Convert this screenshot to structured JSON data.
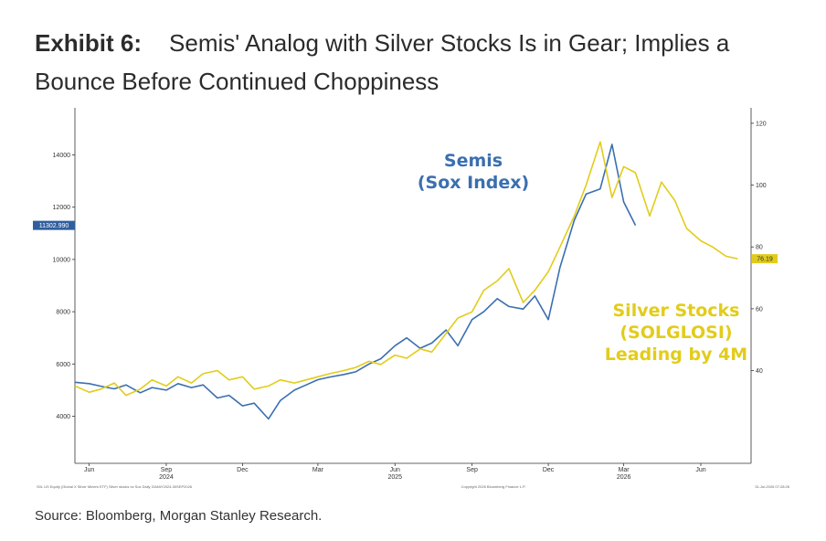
{
  "header": {
    "exhibit": "Exhibit 6:",
    "title": "Semis' Analog with Silver Stocks Is in Gear; Implies a Bounce Before Continued Choppiness"
  },
  "source": "Source: Bloomberg, Morgan Stanley Research.",
  "chart_data": {
    "type": "line",
    "x_axis": {
      "type": "date",
      "range": [
        "2024-05-15",
        "2026-07-31"
      ],
      "tick_labels": [
        {
          "label": "Jun",
          "year": "",
          "date": "2024-06-01"
        },
        {
          "label": "Sep",
          "year": "2024",
          "date": "2024-09-01"
        },
        {
          "label": "Dec",
          "year": "",
          "date": "2024-12-01"
        },
        {
          "label": "Mar",
          "year": "",
          "date": "2025-03-01"
        },
        {
          "label": "Jun",
          "year": "2025",
          "date": "2025-06-01"
        },
        {
          "label": "Sep",
          "year": "",
          "date": "2025-09-01"
        },
        {
          "label": "Dec",
          "year": "",
          "date": "2025-12-01"
        },
        {
          "label": "Mar",
          "year": "2026",
          "date": "2026-03-01"
        },
        {
          "label": "Jun",
          "year": "",
          "date": "2026-06-01"
        }
      ]
    },
    "y_left": {
      "range": [
        2200,
        15800
      ],
      "ticks": [
        4000,
        6000,
        8000,
        10000,
        12000,
        14000
      ],
      "last_value_label": "11302.990"
    },
    "y_right": {
      "range": [
        10,
        125
      ],
      "ticks": [
        40,
        60,
        80,
        100,
        120
      ],
      "last_value_label": "76.19"
    },
    "series": [
      {
        "name": "Semis (Sox Index)",
        "axis": "left",
        "color": "#3a6fb0",
        "points": [
          [
            "2024-05-15",
            5300
          ],
          [
            "2024-06-01",
            5250
          ],
          [
            "2024-06-15",
            5150
          ],
          [
            "2024-07-01",
            5050
          ],
          [
            "2024-07-15",
            5200
          ],
          [
            "2024-08-01",
            4900
          ],
          [
            "2024-08-15",
            5100
          ],
          [
            "2024-09-01",
            5000
          ],
          [
            "2024-09-15",
            5250
          ],
          [
            "2024-10-01",
            5100
          ],
          [
            "2024-10-15",
            5200
          ],
          [
            "2024-11-01",
            4700
          ],
          [
            "2024-11-15",
            4800
          ],
          [
            "2024-12-01",
            4400
          ],
          [
            "2024-12-15",
            4500
          ],
          [
            "2025-01-01",
            3900
          ],
          [
            "2025-01-15",
            4600
          ],
          [
            "2025-02-01",
            5000
          ],
          [
            "2025-02-15",
            5200
          ],
          [
            "2025-03-01",
            5400
          ],
          [
            "2025-03-15",
            5500
          ],
          [
            "2025-04-01",
            5600
          ],
          [
            "2025-04-15",
            5700
          ],
          [
            "2025-05-01",
            6000
          ],
          [
            "2025-05-15",
            6200
          ],
          [
            "2025-06-01",
            6700
          ],
          [
            "2025-06-15",
            7000
          ],
          [
            "2025-07-01",
            6600
          ],
          [
            "2025-07-15",
            6800
          ],
          [
            "2025-08-01",
            7300
          ],
          [
            "2025-08-15",
            6700
          ],
          [
            "2025-09-01",
            7700
          ],
          [
            "2025-09-15",
            8000
          ],
          [
            "2025-10-01",
            8500
          ],
          [
            "2025-10-15",
            8200
          ],
          [
            "2025-11-01",
            8100
          ],
          [
            "2025-11-15",
            8600
          ],
          [
            "2025-12-01",
            7700
          ],
          [
            "2025-12-15",
            9700
          ],
          [
            "2026-01-01",
            11500
          ],
          [
            "2026-01-15",
            12500
          ],
          [
            "2026-02-01",
            12700
          ],
          [
            "2026-02-15",
            14400
          ],
          [
            "2026-03-01",
            12200
          ],
          [
            "2026-03-15",
            11302.99
          ]
        ]
      },
      {
        "name": "Silver Stocks (SOLGLOSI) Leading by 4M",
        "axis": "right",
        "color": "#e2cc1a",
        "points": [
          [
            "2024-05-15",
            35
          ],
          [
            "2024-06-01",
            33
          ],
          [
            "2024-06-15",
            34
          ],
          [
            "2024-07-01",
            36
          ],
          [
            "2024-07-15",
            32
          ],
          [
            "2024-08-01",
            34
          ],
          [
            "2024-08-15",
            37
          ],
          [
            "2024-09-01",
            35
          ],
          [
            "2024-09-15",
            38
          ],
          [
            "2024-10-01",
            36
          ],
          [
            "2024-10-15",
            39
          ],
          [
            "2024-11-01",
            40
          ],
          [
            "2024-11-15",
            37
          ],
          [
            "2024-12-01",
            38
          ],
          [
            "2024-12-15",
            34
          ],
          [
            "2025-01-01",
            35
          ],
          [
            "2025-01-15",
            37
          ],
          [
            "2025-02-01",
            36
          ],
          [
            "2025-02-15",
            37
          ],
          [
            "2025-03-01",
            38
          ],
          [
            "2025-03-15",
            39
          ],
          [
            "2025-04-01",
            40
          ],
          [
            "2025-04-15",
            41
          ],
          [
            "2025-05-01",
            43
          ],
          [
            "2025-05-15",
            42
          ],
          [
            "2025-06-01",
            45
          ],
          [
            "2025-06-15",
            44
          ],
          [
            "2025-07-01",
            47
          ],
          [
            "2025-07-15",
            46
          ],
          [
            "2025-08-01",
            52
          ],
          [
            "2025-08-15",
            57
          ],
          [
            "2025-09-01",
            59
          ],
          [
            "2025-09-15",
            66
          ],
          [
            "2025-10-01",
            69
          ],
          [
            "2025-10-15",
            73
          ],
          [
            "2025-11-01",
            62
          ],
          [
            "2025-11-15",
            66
          ],
          [
            "2025-12-01",
            72
          ],
          [
            "2025-12-15",
            80
          ],
          [
            "2026-01-01",
            90
          ],
          [
            "2026-01-15",
            100
          ],
          [
            "2026-02-01",
            114
          ],
          [
            "2026-02-15",
            96
          ],
          [
            "2026-03-01",
            106
          ],
          [
            "2026-03-15",
            104
          ],
          [
            "2026-04-01",
            90
          ],
          [
            "2026-04-15",
            101
          ],
          [
            "2026-05-01",
            95
          ],
          [
            "2026-05-15",
            86
          ],
          [
            "2026-06-01",
            82
          ],
          [
            "2026-06-15",
            80
          ],
          [
            "2026-07-01",
            77
          ],
          [
            "2026-07-15",
            76.19
          ]
        ]
      }
    ],
    "annotations": [
      {
        "lines": [
          "Semis",
          "(Sox Index)"
        ],
        "color": "#3a6fb0"
      },
      {
        "lines": [
          "Silver Stocks",
          "(SOLGLOSI)",
          "Leading by 4M"
        ],
        "color": "#e2cc1a"
      }
    ],
    "grid": false,
    "footer_left": "S0L US Equity (Global X Silver Miners ETF) Silver stocks vs Sox Daily 31MAY2024-30SEP2026",
    "footer_center": "Copyright 2026 Bloomberg Finance L.P.",
    "footer_right": "31-Jul-2026 07:28:26"
  }
}
